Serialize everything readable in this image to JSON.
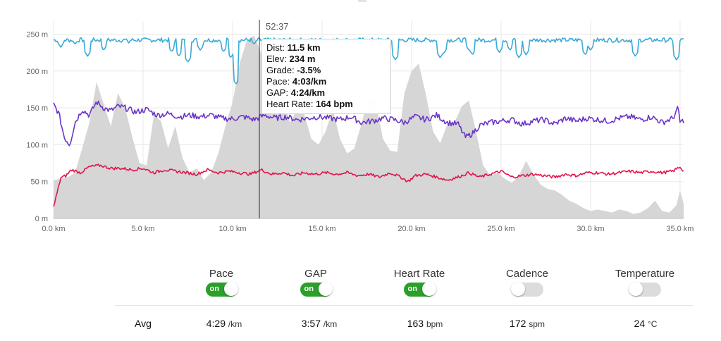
{
  "cursor_time": "52:37",
  "tooltip": {
    "dist_label": "Dist: ",
    "dist_value": "11.5 km",
    "elev_label": "Elev: ",
    "elev_value": "234 m",
    "grade_label": "Grade: ",
    "grade_value": "-3.5%",
    "pace_label": "Pace: ",
    "pace_value": "4:03/km",
    "gap_label": "GAP: ",
    "gap_value": "4:24/km",
    "hr_label": "Heart Rate: ",
    "hr_value": "164 bpm"
  },
  "toggles": [
    {
      "label": "Pace",
      "state": "on",
      "on_text": "on"
    },
    {
      "label": "GAP",
      "state": "on",
      "on_text": "on"
    },
    {
      "label": "Heart Rate",
      "state": "on",
      "on_text": "on"
    },
    {
      "label": "Cadence",
      "state": "off",
      "on_text": ""
    },
    {
      "label": "Temperature",
      "state": "off",
      "on_text": ""
    }
  ],
  "averages": {
    "label": "Avg",
    "pace": {
      "value": "4:29",
      "unit": "/km"
    },
    "gap": {
      "value": "3:57",
      "unit": "/km"
    },
    "heart_rate": {
      "value": "163",
      "unit": "bpm"
    },
    "cadence": {
      "value": "172",
      "unit": "spm"
    },
    "temperature": {
      "value": "24",
      "unit": "°C"
    }
  },
  "colors": {
    "elevation": "#d6d6d6",
    "gap": "#3aaad8",
    "heart_rate": "#6a34c8",
    "pace": "#e0144c",
    "cursor": "#333333",
    "grid": "#e8e8e8"
  },
  "chart_data": {
    "type": "area",
    "x_unit": "km",
    "xlim": [
      0,
      35.2
    ],
    "ylim": [
      0,
      260
    ],
    "x_ticks": [
      0,
      5,
      10,
      15,
      20,
      25,
      30,
      35
    ],
    "x_tick_labels": [
      "0.0 km",
      "5.0 km",
      "10.0 km",
      "15.0 km",
      "20.0 km",
      "25.0 km",
      "30.0 km",
      "35.0 km"
    ],
    "y_ticks": [
      0,
      50,
      100,
      150,
      200,
      250
    ],
    "y_tick_labels": [
      "0 m",
      "50 m",
      "100 m",
      "150 m",
      "200 m",
      "250 m"
    ],
    "cursor_x": 11.5,
    "elevation": {
      "x": [
        0,
        0.8,
        1.2,
        1.6,
        2.0,
        2.4,
        2.8,
        3.2,
        3.6,
        4.0,
        4.4,
        4.8,
        5.2,
        5.6,
        6.0,
        6.4,
        6.8,
        7.2,
        7.6,
        8.0,
        8.4,
        8.8,
        9.2,
        9.6,
        10.0,
        10.4,
        10.8,
        11.2,
        11.6,
        12.0,
        12.4,
        12.8,
        13.2,
        13.6,
        14.0,
        14.4,
        14.8,
        15.2,
        15.6,
        16.0,
        16.4,
        16.8,
        17.2,
        17.6,
        18.0,
        18.4,
        18.8,
        19.2,
        19.6,
        20.0,
        20.4,
        20.8,
        21.2,
        21.6,
        22.0,
        22.4,
        22.8,
        23.2,
        23.6,
        24.0,
        24.4,
        24.8,
        25.2,
        25.6,
        26.0,
        26.4,
        26.8,
        27.2,
        27.6,
        28.0,
        28.4,
        28.8,
        29.2,
        29.6,
        30.0,
        30.4,
        30.8,
        31.2,
        31.6,
        32.0,
        32.4,
        32.8,
        33.2,
        33.6,
        34.0,
        34.4,
        34.8,
        35.0,
        35.2
      ],
      "y": [
        52,
        56,
        62,
        95,
        130,
        185,
        155,
        125,
        170,
        150,
        110,
        75,
        72,
        140,
        132,
        95,
        125,
        82,
        62,
        68,
        52,
        62,
        88,
        125,
        158,
        210,
        242,
        248,
        224,
        232,
        210,
        168,
        130,
        148,
        142,
        108,
        100,
        118,
        148,
        108,
        88,
        95,
        128,
        165,
        158,
        108,
        92,
        90,
        170,
        200,
        210,
        168,
        118,
        102,
        128,
        130,
        152,
        160,
        118,
        72,
        58,
        62,
        54,
        48,
        58,
        78,
        60,
        46,
        40,
        38,
        32,
        24,
        20,
        14,
        10,
        12,
        10,
        8,
        12,
        10,
        6,
        8,
        14,
        24,
        10,
        8,
        18,
        38,
        20
      ]
    },
    "series": [
      {
        "name": "GAP",
        "base": 242,
        "noise": 6,
        "dips": [
          [
            0.4,
            232
          ],
          [
            1.2,
            236
          ],
          [
            1.9,
            220
          ],
          [
            2.8,
            228
          ],
          [
            4.2,
            238
          ],
          [
            6.6,
            226
          ],
          [
            7.0,
            220
          ],
          [
            7.5,
            212
          ],
          [
            8.2,
            228
          ],
          [
            9.5,
            226
          ],
          [
            9.9,
            218
          ],
          [
            10.2,
            182
          ],
          [
            11.2,
            236
          ],
          [
            19.1,
            215
          ],
          [
            21.6,
            218
          ],
          [
            21.8,
            224
          ],
          [
            23.2,
            228
          ],
          [
            23.4,
            222
          ],
          [
            24.9,
            225
          ],
          [
            25.5,
            228
          ],
          [
            26.0,
            218
          ],
          [
            26.4,
            222
          ],
          [
            29.7,
            222
          ],
          [
            30.0,
            228
          ],
          [
            32.5,
            220
          ],
          [
            34.8,
            215
          ]
        ]
      },
      {
        "name": "Heart Rate",
        "base": 138,
        "noise": 8,
        "points": [
          [
            0,
            155
          ],
          [
            0.3,
            142
          ],
          [
            0.6,
            110
          ],
          [
            0.9,
            100
          ],
          [
            1.2,
            130
          ],
          [
            1.6,
            148
          ],
          [
            2.0,
            140
          ],
          [
            2.4,
            158
          ],
          [
            2.8,
            150
          ],
          [
            3.2,
            146
          ],
          [
            3.6,
            152
          ],
          [
            4.0,
            150
          ],
          [
            4.6,
            144
          ],
          [
            5.2,
            148
          ],
          [
            5.8,
            140
          ],
          [
            6.4,
            142
          ],
          [
            7.0,
            138
          ],
          [
            7.6,
            140
          ],
          [
            8.2,
            138
          ],
          [
            8.8,
            140
          ],
          [
            9.4,
            136
          ],
          [
            10.0,
            135
          ],
          [
            10.6,
            138
          ],
          [
            11.2,
            134
          ],
          [
            11.8,
            140
          ],
          [
            12.4,
            136
          ],
          [
            13.0,
            138
          ],
          [
            13.6,
            134
          ],
          [
            14.2,
            136
          ],
          [
            14.8,
            138
          ],
          [
            15.4,
            136
          ],
          [
            16.0,
            134
          ],
          [
            16.6,
            138
          ],
          [
            17.2,
            130
          ],
          [
            17.8,
            132
          ],
          [
            18.4,
            136
          ],
          [
            19.0,
            134
          ],
          [
            19.6,
            130
          ],
          [
            20.2,
            138
          ],
          [
            20.8,
            134
          ],
          [
            21.4,
            140
          ],
          [
            22.0,
            130
          ],
          [
            22.6,
            128
          ],
          [
            23.0,
            110
          ],
          [
            23.4,
            115
          ],
          [
            23.8,
            126
          ],
          [
            24.4,
            130
          ],
          [
            25.0,
            132
          ],
          [
            25.6,
            134
          ],
          [
            26.2,
            128
          ],
          [
            26.8,
            132
          ],
          [
            27.4,
            134
          ],
          [
            28.0,
            128
          ],
          [
            28.6,
            136
          ],
          [
            29.2,
            132
          ],
          [
            29.8,
            136
          ],
          [
            30.4,
            134
          ],
          [
            31.0,
            132
          ],
          [
            31.6,
            136
          ],
          [
            32.2,
            138
          ],
          [
            32.8,
            134
          ],
          [
            33.4,
            138
          ],
          [
            34.0,
            130
          ],
          [
            34.6,
            136
          ],
          [
            34.9,
            150
          ],
          [
            35.0,
            130
          ],
          [
            35.2,
            133
          ]
        ]
      },
      {
        "name": "Pace",
        "base": 62,
        "noise": 4,
        "points": [
          [
            0,
            15
          ],
          [
            0.2,
            35
          ],
          [
            0.4,
            55
          ],
          [
            0.7,
            58
          ],
          [
            1.0,
            66
          ],
          [
            1.5,
            62
          ],
          [
            2.0,
            70
          ],
          [
            2.6,
            72
          ],
          [
            3.2,
            68
          ],
          [
            3.8,
            68
          ],
          [
            4.4,
            66
          ],
          [
            5.0,
            68
          ],
          [
            5.6,
            62
          ],
          [
            6.2,
            66
          ],
          [
            6.8,
            64
          ],
          [
            7.4,
            62
          ],
          [
            8.0,
            60
          ],
          [
            8.6,
            66
          ],
          [
            9.2,
            62
          ],
          [
            9.8,
            64
          ],
          [
            10.4,
            62
          ],
          [
            11.0,
            60
          ],
          [
            11.6,
            66
          ],
          [
            12.2,
            60
          ],
          [
            12.8,
            62
          ],
          [
            13.4,
            58
          ],
          [
            14.0,
            62
          ],
          [
            14.6,
            60
          ],
          [
            15.2,
            62
          ],
          [
            15.8,
            60
          ],
          [
            16.4,
            62
          ],
          [
            17.0,
            58
          ],
          [
            17.6,
            60
          ],
          [
            18.2,
            56
          ],
          [
            18.8,
            62
          ],
          [
            19.4,
            56
          ],
          [
            19.8,
            50
          ],
          [
            20.2,
            58
          ],
          [
            20.8,
            60
          ],
          [
            21.4,
            56
          ],
          [
            22.0,
            52
          ],
          [
            22.6,
            56
          ],
          [
            23.2,
            62
          ],
          [
            23.8,
            56
          ],
          [
            24.4,
            60
          ],
          [
            25.0,
            64
          ],
          [
            25.6,
            56
          ],
          [
            26.2,
            58
          ],
          [
            26.8,
            60
          ],
          [
            27.4,
            58
          ],
          [
            28.0,
            56
          ],
          [
            28.6,
            60
          ],
          [
            29.2,
            58
          ],
          [
            29.8,
            62
          ],
          [
            30.4,
            62
          ],
          [
            31.0,
            60
          ],
          [
            31.6,
            62
          ],
          [
            32.2,
            64
          ],
          [
            32.8,
            62
          ],
          [
            33.4,
            64
          ],
          [
            34.0,
            62
          ],
          [
            34.6,
            64
          ],
          [
            35.0,
            70
          ],
          [
            35.2,
            64
          ]
        ]
      }
    ]
  }
}
